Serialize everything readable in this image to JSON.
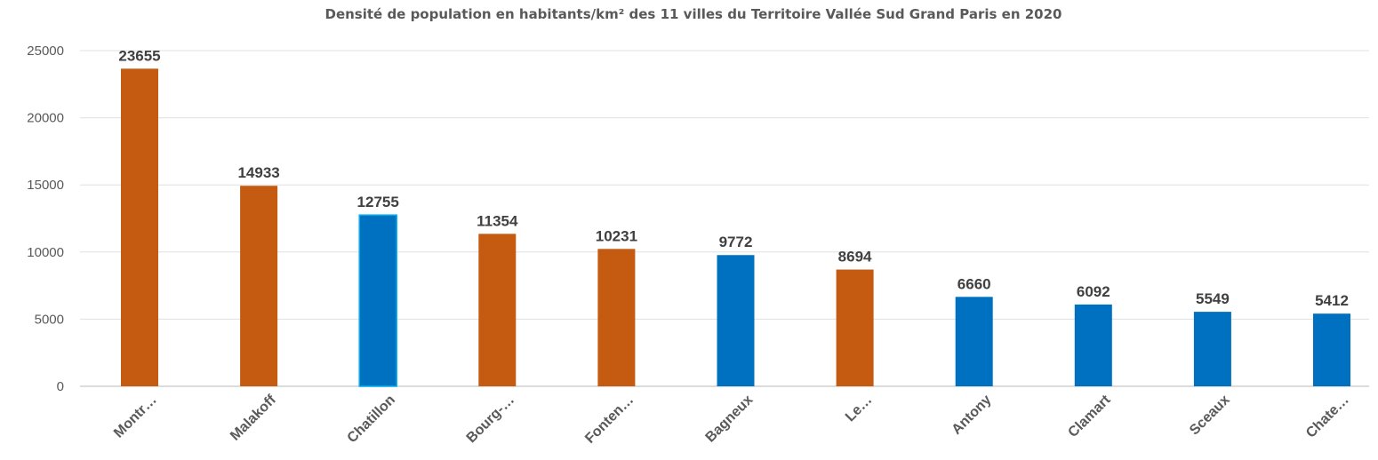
{
  "chart_data": {
    "type": "bar",
    "title": "Densité de population en habitants/km² des 11 villes du Territoire Vallée Sud Grand Paris en 2020",
    "xlabel": "",
    "ylabel": "",
    "ylim": [
      0,
      25000
    ],
    "yticks": [
      0,
      5000,
      10000,
      15000,
      20000,
      25000
    ],
    "grid": true,
    "categories": [
      "Montr…",
      "Malakoff",
      "Chatillon",
      "Bourg-…",
      "Fonten…",
      "Bagneux",
      "Le…",
      "Antony",
      "Clamart",
      "Sceaux",
      "Chate…"
    ],
    "values": [
      23655,
      14933,
      12755,
      11354,
      10231,
      9772,
      8694,
      6660,
      6092,
      5549,
      5412
    ],
    "bar_colors": [
      "#C55A11",
      "#C55A11",
      "#0070C0",
      "#C55A11",
      "#C55A11",
      "#0070C0",
      "#C55A11",
      "#0070C0",
      "#0070C0",
      "#0070C0",
      "#0070C0"
    ],
    "data_labels": [
      "23655",
      "14933",
      "12755",
      "11354",
      "10231",
      "9772",
      "8694",
      "6660",
      "6092",
      "5549",
      "5412"
    ]
  }
}
